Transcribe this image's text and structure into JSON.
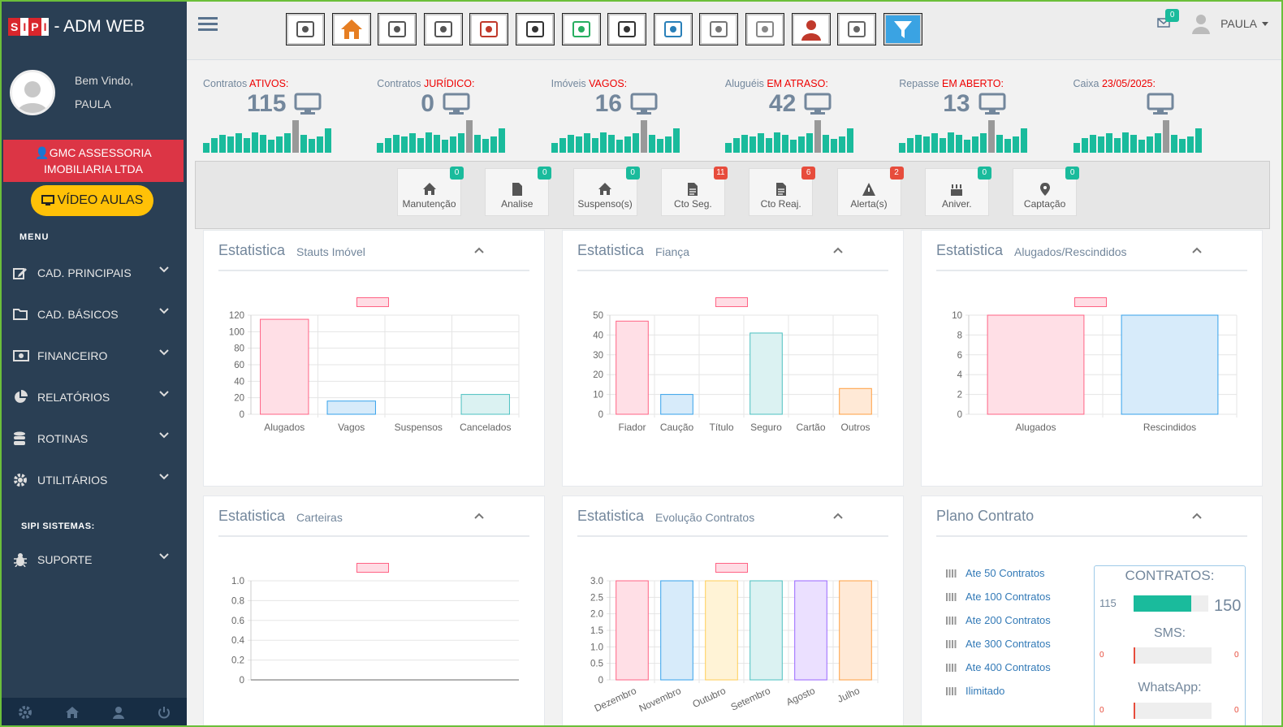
{
  "brand": {
    "logo_letters": [
      "S",
      "I",
      "P",
      "I"
    ],
    "title": "- ADM WEB"
  },
  "profile": {
    "welcome": "Bem Vindo,",
    "user": "PAULA"
  },
  "company": "GMC ASSESSORIA IMOBILIARIA LTDA",
  "video_button": "VÍDEO AULAS",
  "menu_title": "MENU",
  "nav": [
    {
      "label": "CAD. PRINCIPAIS",
      "icon": "edit-icon"
    },
    {
      "label": "CAD. BÁSICOS",
      "icon": "folder-icon"
    },
    {
      "label": "FINANCEIRO",
      "icon": "money-icon"
    },
    {
      "label": "RELATÓRIOS",
      "icon": "pie-chart-icon"
    },
    {
      "label": "ROTINAS",
      "icon": "database-icon"
    },
    {
      "label": "UTILITÁRIOS",
      "icon": "gear-icon"
    }
  ],
  "sipi_title": "SIPI SISTEMAS:",
  "support": {
    "label": "SUPORTE",
    "icon": "bug-icon"
  },
  "topbar": {
    "user": "PAULA",
    "mail_count": "0",
    "toolbar_icons": [
      "user-tool-icon",
      "home-tool-icon",
      "search-map-icon",
      "people-icon",
      "document-stamp-icon",
      "printer-icon",
      "money-add-icon",
      "signature-pen-icon",
      "calculator-pen-icon",
      "papers-icon",
      "keys-icon",
      "agent-icon",
      "clock-screen-icon",
      "filter-icon"
    ]
  },
  "stats": [
    {
      "prefix": "Contratos ",
      "hl": "ATIVOS:",
      "value": "115"
    },
    {
      "prefix": "Contratos ",
      "hl": "JURÍDICO:",
      "value": "0"
    },
    {
      "prefix": "Imóveis ",
      "hl": "VAGOS:",
      "value": "16"
    },
    {
      "prefix": "Aluguéis ",
      "hl": "EM ATRASO:",
      "value": "42"
    },
    {
      "prefix": "Repasse ",
      "hl": "EM ABERTO:",
      "value": "13"
    },
    {
      "prefix": "Caixa ",
      "hl": "23/05/2025:",
      "value": ""
    }
  ],
  "sparkline": [
    12,
    18,
    22,
    20,
    24,
    18,
    25,
    22,
    16,
    20,
    24,
    40,
    22,
    17,
    20,
    30
  ],
  "shortcuts": [
    {
      "label": "Manutenção",
      "badge": "0",
      "color": "green",
      "icon": "home-icon"
    },
    {
      "label": "Analise",
      "badge": "0",
      "color": "green",
      "icon": "file-icon"
    },
    {
      "label": "Suspenso(s)",
      "badge": "0",
      "color": "green",
      "icon": "home-icon"
    },
    {
      "label": "Cto Seg.",
      "badge": "11",
      "color": "red",
      "icon": "file-text-icon"
    },
    {
      "label": "Cto Reaj.",
      "badge": "6",
      "color": "red",
      "icon": "file-text-icon"
    },
    {
      "label": "Alerta(s)",
      "badge": "2",
      "color": "red",
      "icon": "warning-icon"
    },
    {
      "label": "Aniver.",
      "badge": "0",
      "color": "green",
      "icon": "cake-icon"
    },
    {
      "label": "Captação",
      "badge": "0",
      "color": "green",
      "icon": "map-pin-icon"
    }
  ],
  "panels": [
    {
      "title": "Estatistica",
      "subtitle": "Stauts Imóvel"
    },
    {
      "title": "Estatistica",
      "subtitle": "Fiança"
    },
    {
      "title": "Estatistica",
      "subtitle": "Alugados/Rescindidos"
    },
    {
      "title": "Estatistica",
      "subtitle": "Carteiras"
    },
    {
      "title": "Estatistica",
      "subtitle": "Evolução Contratos"
    },
    {
      "title": "Plano Contrato",
      "subtitle": ""
    }
  ],
  "chart_data": [
    {
      "type": "bar",
      "title": "",
      "categories": [
        "Alugados",
        "Vagos",
        "Suspensos",
        "Cancelados"
      ],
      "values": [
        115,
        16,
        0,
        24
      ],
      "ylim": [
        0,
        120
      ],
      "yticks": [
        0,
        20,
        40,
        60,
        80,
        100,
        120
      ],
      "grid": true
    },
    {
      "type": "bar",
      "title": "",
      "categories": [
        "Fiador",
        "Caução",
        "Título",
        "Seguro",
        "Cartão",
        "Outros"
      ],
      "values": [
        47,
        10,
        0,
        41,
        0,
        13
      ],
      "ylim": [
        0,
        50
      ],
      "yticks": [
        0,
        10,
        20,
        30,
        40,
        50
      ],
      "grid": true
    },
    {
      "type": "bar",
      "title": "",
      "categories": [
        "Alugados",
        "Rescindidos"
      ],
      "values": [
        10,
        10
      ],
      "ylim": [
        0,
        10
      ],
      "yticks": [
        0,
        2,
        4,
        6,
        8,
        10
      ],
      "grid": true
    },
    {
      "type": "bar",
      "title": "",
      "categories": [],
      "values": [],
      "ylim": [
        0,
        1
      ],
      "yticks": [
        "0",
        "0.2",
        "0.4",
        "0.6",
        "0.8",
        "1.0"
      ],
      "grid": true
    },
    {
      "type": "bar",
      "title": "",
      "categories": [
        "Dezembro",
        "Novembro",
        "Outubro",
        "Setembro",
        "Agosto",
        "Julho"
      ],
      "values": [
        3,
        3,
        3,
        3,
        3,
        3
      ],
      "ylim": [
        0,
        3
      ],
      "yticks": [
        "0",
        "0.5",
        "1.0",
        "1.5",
        "2.0",
        "2.5",
        "3.0"
      ],
      "grid": true
    }
  ],
  "bar_colors": [
    {
      "fill": "#ffdfe6",
      "stroke": "#ff6384"
    },
    {
      "fill": "#d7ebfa",
      "stroke": "#36a2eb"
    },
    {
      "fill": "#fff3d6",
      "stroke": "#ffce56"
    },
    {
      "fill": "#dbf2f2",
      "stroke": "#4bc0c0"
    },
    {
      "fill": "#ebe0ff",
      "stroke": "#9966ff"
    },
    {
      "fill": "#ffe9d6",
      "stroke": "#ff9f40"
    }
  ],
  "plano": {
    "list": [
      "Ate 50 Contratos",
      "Ate 100 Contratos",
      "Ate 200 Contratos",
      "Ate 300 Contratos",
      "Ate 400 Contratos",
      "Ilimitado"
    ],
    "contratos_label": "CONTRATOS:",
    "contratos_used": "115",
    "contratos_max": "150",
    "contratos_progress": 0.77,
    "sms_label": "SMS:",
    "sms_left": "0",
    "sms_right": "0",
    "whatsapp_label": "WhatsApp:",
    "wa_left": "0",
    "wa_right": "0"
  }
}
